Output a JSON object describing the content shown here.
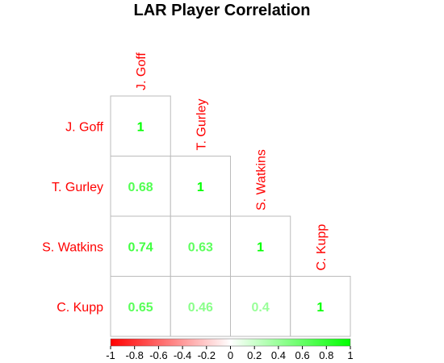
{
  "chart_data": {
    "type": "heatmap",
    "title": "LAR Player Correlation",
    "variables": [
      "J. Goff",
      "T. Gurley",
      "S. Watkins",
      "C. Kupp"
    ],
    "matrix": [
      [
        1,
        null,
        null,
        null
      ],
      [
        0.68,
        1,
        null,
        null
      ],
      [
        0.74,
        0.63,
        1,
        null
      ],
      [
        0.65,
        0.46,
        0.4,
        1
      ]
    ],
    "value_labels": [
      [
        "1"
      ],
      [
        "0.68",
        "1"
      ],
      [
        "0.74",
        "0.63",
        "1"
      ],
      [
        "0.65",
        "0.46",
        "0.4",
        "1"
      ]
    ],
    "layout": "lower-triangle",
    "colorbar": {
      "range": [
        -1,
        1
      ],
      "ticks": [
        "-1",
        "-0.8",
        "-0.6",
        "-0.4",
        "-0.2",
        "0",
        "0.2",
        "0.4",
        "0.6",
        "0.8",
        "1"
      ],
      "colors": {
        "negative": "#ff0000",
        "zero": "#ffffff",
        "positive": "#00ff00"
      },
      "placement": "bottom"
    },
    "label_color": "#ff0000",
    "grid_color": "#bbbbbb"
  }
}
